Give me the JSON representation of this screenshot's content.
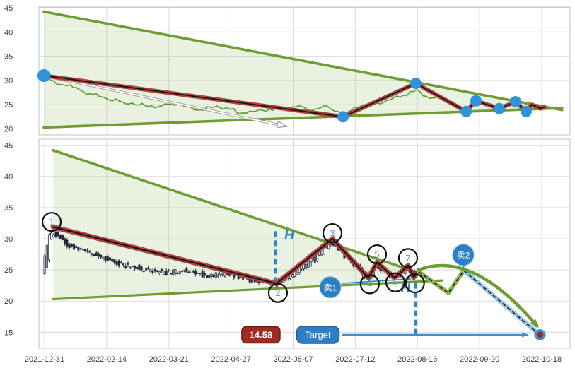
{
  "colors": {
    "olive": "#6f9d33",
    "olive_fill": "rgba(154,198,116,0.22)",
    "price_green": "#5d9732",
    "red": "#b0433f",
    "black_core": "#141414",
    "dot_blue": "#2e93d9",
    "signal_blue": "#2e86c8",
    "badge_blue": "#2b7fc2",
    "badge_border": "#7db7e4",
    "forecast_green": "#8ab04f",
    "forecast_blue": "#8cc3e8",
    "dash_core": "#1c1c1c",
    "target_arrow": "#3a8fd0",
    "price_box_bg": "#a02b20",
    "price_box_border": "#701c12",
    "target_box_bg": "#2b7fc2",
    "target_box_border": "#1a5c9a",
    "candle": "#23233b",
    "grid": "#dcdcdc",
    "panel_border": "#c2c2c2",
    "axis_text": "#3c3c3c",
    "wave_number": "#5aa2d4",
    "circle_stroke": "#111111",
    "white_arrow_border": "#999999"
  },
  "axis": {
    "x_tick_labels": [
      "2021-12-31",
      "2022-02-14",
      "2022-03-21",
      "2022-04-27",
      "2022-06-07",
      "2022-07-12",
      "2022-08-16",
      "2022-09-20",
      "2022-10-18"
    ],
    "top_y_ticks": [
      45,
      40,
      35,
      30,
      25,
      20
    ],
    "bottom_y_ticks": [
      45,
      40,
      35,
      30,
      25,
      20,
      15
    ]
  },
  "annotations": {
    "h_label": "H",
    "sell1": "卖1",
    "sell2": "卖2",
    "target_label": "Target",
    "target_price": "14.58",
    "wave_numbers": [
      "1",
      "2",
      "3",
      "4",
      "5",
      "6",
      "7"
    ]
  },
  "chart_data": [
    {
      "panel": "overview",
      "type": "line",
      "ylim": [
        19,
        45.5
      ],
      "y_ticks": [
        45,
        40,
        35,
        30,
        25,
        20
      ],
      "channel": {
        "upper": [
          [
            0.0093,
            44.2
          ],
          [
            0.985,
            23.9
          ]
        ],
        "lower": [
          [
            0.0093,
            20.3
          ],
          [
            0.985,
            24.3
          ]
        ]
      },
      "price_anchors": [
        [
          0.0093,
          30.8
        ],
        [
          0.03,
          29.6
        ],
        [
          0.06,
          28.7
        ],
        [
          0.1,
          27.1
        ],
        [
          0.14,
          26.0
        ],
        [
          0.18,
          25.1
        ],
        [
          0.22,
          24.6
        ],
        [
          0.26,
          25.1
        ],
        [
          0.3,
          23.9
        ],
        [
          0.34,
          24.7
        ],
        [
          0.38,
          23.3
        ],
        [
          0.42,
          23.9
        ],
        [
          0.45,
          24.1
        ],
        [
          0.48,
          24.5
        ],
        [
          0.515,
          24.1
        ],
        [
          0.545,
          24.7
        ],
        [
          0.572,
          23.0
        ],
        [
          0.6,
          24.6
        ],
        [
          0.635,
          25.3
        ],
        [
          0.665,
          26.2
        ],
        [
          0.695,
          27.3
        ],
        [
          0.71,
          28.0
        ],
        [
          0.725,
          27.0
        ],
        [
          0.748,
          26.2
        ]
      ],
      "zigzag": [
        [
          0.0093,
          31.0
        ],
        [
          0.5726,
          22.5
        ],
        [
          0.7097,
          29.4
        ],
        [
          0.8043,
          23.6
        ],
        [
          0.8229,
          25.8
        ],
        [
          0.8668,
          24.2
        ],
        [
          0.8975,
          25.6
        ],
        [
          0.9174,
          23.6
        ],
        [
          0.9281,
          25.0
        ],
        [
          0.9441,
          24.2
        ],
        [
          0.952,
          24.5
        ]
      ],
      "dot_indices": [
        0,
        1,
        2,
        3,
        4,
        5,
        6,
        7
      ],
      "white_arrow": {
        "from": [
          0.0146,
          30.85
        ],
        "to": [
          0.4674,
          20.5
        ]
      }
    },
    {
      "panel": "main",
      "type": "candlestick",
      "ylim": [
        12.4,
        46
      ],
      "y_ticks": [
        45,
        40,
        35,
        30,
        25,
        20,
        15
      ],
      "channel": {
        "upper": [
          [
            0.0266,
            44.2
          ],
          [
            0.713,
            24.6
          ]
        ],
        "lower": [
          [
            0.0266,
            20.3
          ],
          [
            0.76,
            23.3
          ]
        ]
      },
      "candle_anchors": [
        [
          0.0107,
          25.8
        ],
        [
          0.016,
          27.3
        ],
        [
          0.024,
          30.6
        ],
        [
          0.034,
          30.9
        ],
        [
          0.05,
          29.4
        ],
        [
          0.08,
          28.3
        ],
        [
          0.12,
          27.0
        ],
        [
          0.16,
          25.9
        ],
        [
          0.2,
          25.1
        ],
        [
          0.24,
          24.5
        ],
        [
          0.28,
          24.9
        ],
        [
          0.32,
          24.0
        ],
        [
          0.36,
          24.5
        ],
        [
          0.4,
          23.5
        ],
        [
          0.4474,
          22.9
        ],
        [
          0.48,
          24.4
        ],
        [
          0.52,
          26.8
        ],
        [
          0.5526,
          29.7
        ],
        [
          0.58,
          27.3
        ],
        [
          0.6205,
          23.9
        ],
        [
          0.6365,
          25.9
        ],
        [
          0.6698,
          23.9
        ],
        [
          0.6951,
          25.4
        ],
        [
          0.711,
          24.3
        ]
      ],
      "candle_count": 165,
      "candle_start": 0.0107,
      "candle_end": 0.711,
      "noise_seed": 11,
      "zigzag": [
        [
          0.0266,
          31.9
        ],
        [
          0.4474,
          22.8
        ],
        [
          0.5526,
          30.0
        ],
        [
          0.6205,
          23.7
        ],
        [
          0.6365,
          26.2
        ],
        [
          0.6698,
          23.7
        ],
        [
          0.6951,
          25.7
        ],
        [
          0.7057,
          23.8
        ],
        [
          0.7164,
          24.9
        ]
      ],
      "waves": [
        {
          "n": "1",
          "f": 0.024,
          "v": 32.7
        },
        {
          "n": "2",
          "f": 0.45,
          "v": 21.3
        },
        {
          "n": "3",
          "f": 0.5526,
          "v": 30.9
        },
        {
          "n": "4",
          "f": 0.623,
          "v": 22.7
        },
        {
          "n": "5",
          "f": 0.6365,
          "v": 27.5
        },
        {
          "n": "6",
          "f": 0.671,
          "v": 23.0
        },
        {
          "n": "7",
          "f": 0.695,
          "v": 26.9
        },
        {
          "n": "",
          "f": 0.708,
          "v": 22.85
        }
      ],
      "measure_lines": [
        {
          "x": 0.446,
          "v_from": 31.2,
          "v_to": 22.9,
          "label_f": 0.462,
          "label_v": 29.9,
          "arrow_top": false
        },
        {
          "x": 0.709,
          "v_from": 23.1,
          "v_to": 14.62,
          "label_f": 0.681,
          "label_v": 21.4,
          "arrow_top": true
        }
      ],
      "sell1": {
        "f": 0.5486,
        "v": 22.2,
        "arrow_from": [
          0.571,
          22.85
        ],
        "arrow_to": [
          0.7,
          23.55
        ]
      },
      "sell2": {
        "f": 0.799,
        "v": 27.4,
        "tail_to": [
          0.8,
          25.3
        ]
      },
      "forecast_green": [
        [
          0.715,
          24.7
        ],
        [
          0.771,
          21.3
        ],
        [
          0.8,
          24.9
        ]
      ],
      "forecast_blue": [
        [
          0.8,
          24.9
        ],
        [
          0.9434,
          14.55
        ]
      ],
      "forecast_curve": {
        "from": [
          0.715,
          25.0
        ],
        "ctrl": [
          0.816,
          28.3
        ],
        "to": [
          0.9387,
          15.9
        ]
      },
      "target": {
        "value": 14.58,
        "line_start_f": 0.57,
        "line_end_f": 0.92,
        "dot_f": 0.9434,
        "price_box_f": 0.418,
        "button_f": 0.5253
      }
    }
  ]
}
